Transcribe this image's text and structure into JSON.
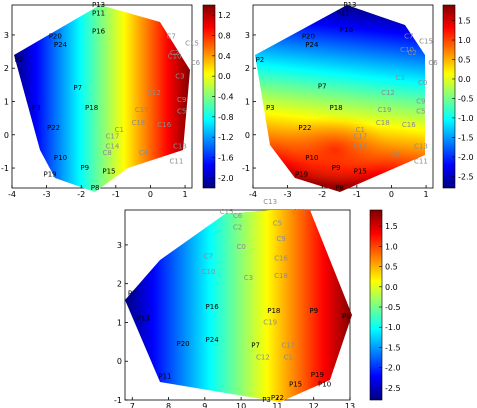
{
  "chart_data": [
    {
      "type": "heatmap",
      "name": "panel-top-left",
      "xlim": [
        -4,
        1.2
      ],
      "ylim": [
        -1.6,
        3.9
      ],
      "xticks": [
        "-4",
        "-3",
        "-2",
        "-1",
        "0",
        "1"
      ],
      "yticks": [
        "3",
        "2",
        "1",
        "0",
        "-1"
      ],
      "colorbar_ticks": [
        "1.2",
        "0.8",
        "0.4",
        "0.0",
        "-0.4",
        "-0.8",
        "-1.2",
        "-1.6",
        "-2.0"
      ],
      "colorbar_range": [
        -2.2,
        1.4
      ],
      "colormap": [
        "#00007f",
        "#0000ff",
        "#0080ff",
        "#00ffff",
        "#80ff80",
        "#ffff00",
        "#ff8000",
        "#ff0000",
        "#7f0000"
      ],
      "points": [
        {
          "label": "P13",
          "x": -1.5,
          "y": 3.9,
          "group": "P"
        },
        {
          "label": "P11",
          "x": -1.5,
          "y": 3.65,
          "group": "P"
        },
        {
          "label": "P16",
          "x": -1.5,
          "y": 3.1,
          "group": "P"
        },
        {
          "label": "P20",
          "x": -2.75,
          "y": 2.95,
          "group": "P"
        },
        {
          "label": "P24",
          "x": -2.6,
          "y": 2.7,
          "group": "P"
        },
        {
          "label": "P2",
          "x": -3.8,
          "y": 2.25,
          "group": "P"
        },
        {
          "label": "P7",
          "x": -2.1,
          "y": 1.4,
          "group": "P"
        },
        {
          "label": "P3",
          "x": -3.3,
          "y": 0.8,
          "group": "P"
        },
        {
          "label": "P18",
          "x": -1.7,
          "y": 0.8,
          "group": "P"
        },
        {
          "label": "P22",
          "x": -2.8,
          "y": 0.2,
          "group": "P"
        },
        {
          "label": "P10",
          "x": -2.6,
          "y": -0.7,
          "group": "P"
        },
        {
          "label": "P9",
          "x": -1.9,
          "y": -1.0,
          "group": "P"
        },
        {
          "label": "P15",
          "x": -1.2,
          "y": -1.1,
          "group": "P"
        },
        {
          "label": "P19",
          "x": -2.9,
          "y": -1.2,
          "group": "P"
        },
        {
          "label": "P8",
          "x": -1.6,
          "y": -1.6,
          "group": "P"
        },
        {
          "label": "C7",
          "x": 0.6,
          "y": 2.95,
          "group": "C"
        },
        {
          "label": "C15",
          "x": 1.2,
          "y": 2.75,
          "group": "C"
        },
        {
          "label": "C2",
          "x": 0.7,
          "y": 2.45,
          "group": "C"
        },
        {
          "label": "C10",
          "x": 0.7,
          "y": 2.35,
          "group": "C"
        },
        {
          "label": "C6",
          "x": 1.3,
          "y": 2.15,
          "group": "C"
        },
        {
          "label": "C3",
          "x": 0.85,
          "y": 1.75,
          "group": "C"
        },
        {
          "label": "C12",
          "x": 0.1,
          "y": 1.25,
          "group": "C"
        },
        {
          "label": "C9",
          "x": 0.9,
          "y": 1.05,
          "group": "C"
        },
        {
          "label": "C19",
          "x": -0.25,
          "y": 0.75,
          "group": "C"
        },
        {
          "label": "C5",
          "x": 0.9,
          "y": 0.7,
          "group": "C"
        },
        {
          "label": "C18",
          "x": -0.35,
          "y": 0.35,
          "group": "C"
        },
        {
          "label": "C16",
          "x": 0.4,
          "y": 0.3,
          "group": "C"
        },
        {
          "label": "C1",
          "x": -0.9,
          "y": 0.15,
          "group": "C"
        },
        {
          "label": "C17",
          "x": -1.1,
          "y": -0.05,
          "group": "C"
        },
        {
          "label": "C14",
          "x": -1.1,
          "y": -0.35,
          "group": "C"
        },
        {
          "label": "C8",
          "x": -1.25,
          "y": -0.55,
          "group": "C"
        },
        {
          "label": "C13",
          "x": 0.85,
          "y": -0.35,
          "group": "C"
        },
        {
          "label": "C4",
          "x": -0.2,
          "y": -0.55,
          "group": "C"
        },
        {
          "label": "C11",
          "x": 0.75,
          "y": -0.8,
          "group": "C"
        }
      ]
    },
    {
      "type": "heatmap",
      "name": "panel-top-right",
      "xlim": [
        -4,
        1.2
      ],
      "ylim": [
        -1.6,
        3.9
      ],
      "xticks": [
        "-4",
        "-3",
        "-2",
        "-1",
        "0",
        "1"
      ],
      "yticks": [
        "3",
        "2",
        "1",
        "0",
        "-1"
      ],
      "colorbar_ticks": [
        "1.5",
        "1.0",
        "0.5",
        "0.0",
        "-0.5",
        "-1.0",
        "-1.5",
        "-2.0",
        "-2.5"
      ],
      "colorbar_range": [
        -2.8,
        1.9
      ],
      "colormap": [
        "#00007f",
        "#0000ff",
        "#0080ff",
        "#00ffff",
        "#80ff80",
        "#ffff00",
        "#ff8000",
        "#ff0000",
        "#7f0000"
      ],
      "points": [
        {
          "label": "P13",
          "x": -1.2,
          "y": 3.9,
          "group": "P"
        },
        {
          "label": "P11",
          "x": -1.4,
          "y": 3.65,
          "group": "P"
        },
        {
          "label": "P16",
          "x": -1.3,
          "y": 3.15,
          "group": "P"
        },
        {
          "label": "P20",
          "x": -2.4,
          "y": 2.95,
          "group": "P"
        },
        {
          "label": "P24",
          "x": -2.3,
          "y": 2.7,
          "group": "P"
        },
        {
          "label": "P2",
          "x": -3.8,
          "y": 2.25,
          "group": "P"
        },
        {
          "label": "P7",
          "x": -2.0,
          "y": 1.45,
          "group": "P"
        },
        {
          "label": "P3",
          "x": -3.5,
          "y": 0.8,
          "group": "P"
        },
        {
          "label": "P18",
          "x": -1.6,
          "y": 0.8,
          "group": "P"
        },
        {
          "label": "P22",
          "x": -2.5,
          "y": 0.2,
          "group": "P"
        },
        {
          "label": "P10",
          "x": -2.3,
          "y": -0.7,
          "group": "P"
        },
        {
          "label": "P9",
          "x": -1.6,
          "y": -1.0,
          "group": "P"
        },
        {
          "label": "P15",
          "x": -0.9,
          "y": -1.1,
          "group": "P"
        },
        {
          "label": "P19",
          "x": -2.6,
          "y": -1.2,
          "group": "P"
        },
        {
          "label": "P8",
          "x": -1.5,
          "y": -1.6,
          "group": "P"
        },
        {
          "label": "C7",
          "x": 0.5,
          "y": 2.95,
          "group": "C"
        },
        {
          "label": "C15",
          "x": 1.0,
          "y": 2.8,
          "group": "C"
        },
        {
          "label": "C10",
          "x": 0.45,
          "y": 2.55,
          "group": "C"
        },
        {
          "label": "C2",
          "x": 0.6,
          "y": 2.45,
          "group": "C"
        },
        {
          "label": "C6",
          "x": 1.2,
          "y": 2.15,
          "group": "C"
        },
        {
          "label": "C3",
          "x": 0.25,
          "y": 1.7,
          "group": "C"
        },
        {
          "label": "C0",
          "x": 0.9,
          "y": 1.55,
          "group": "C"
        },
        {
          "label": "C12",
          "x": -0.1,
          "y": 1.25,
          "group": "C"
        },
        {
          "label": "C9",
          "x": 0.85,
          "y": 1.0,
          "group": "C"
        },
        {
          "label": "C19",
          "x": -0.2,
          "y": 0.75,
          "group": "C"
        },
        {
          "label": "C5",
          "x": 0.85,
          "y": 0.7,
          "group": "C"
        },
        {
          "label": "C18",
          "x": -0.25,
          "y": 0.35,
          "group": "C"
        },
        {
          "label": "C16",
          "x": 0.5,
          "y": 0.3,
          "group": "C"
        },
        {
          "label": "C1",
          "x": -0.9,
          "y": 0.15,
          "group": "C"
        },
        {
          "label": "C17",
          "x": -0.9,
          "y": -0.05,
          "group": "C"
        },
        {
          "label": "C14",
          "x": -0.9,
          "y": -0.35,
          "group": "C"
        },
        {
          "label": "C13",
          "x": 0.85,
          "y": -0.35,
          "group": "C"
        },
        {
          "label": "C4",
          "x": 0.1,
          "y": -0.6,
          "group": "C"
        },
        {
          "label": "C11",
          "x": 0.85,
          "y": -0.8,
          "group": "C"
        }
      ]
    },
    {
      "type": "heatmap",
      "name": "panel-bottom",
      "xlim": [
        6.8,
        13
      ],
      "ylim": [
        -1,
        3.9
      ],
      "xticks": [
        "7",
        "8",
        "9",
        "10",
        "11",
        "12",
        "13"
      ],
      "yticks": [
        "3",
        "2",
        "1",
        "0",
        "-1"
      ],
      "colorbar_ticks": [
        "1.5",
        "1.0",
        "0.5",
        "0.0",
        "-0.5",
        "-1.0",
        "-1.5",
        "-2.0",
        "-2.5"
      ],
      "colorbar_range": [
        -2.8,
        1.9
      ],
      "colormap": [
        "#00007f",
        "#0000ff",
        "#0080ff",
        "#00ffff",
        "#80ff80",
        "#ffff00",
        "#ff8000",
        "#ff0000",
        "#7f0000"
      ],
      "points": [
        {
          "label": "C13",
          "x": 10.8,
          "y": 4.1,
          "group": "C"
        },
        {
          "label": "C15",
          "x": 9.6,
          "y": 3.85,
          "group": "C"
        },
        {
          "label": "C6",
          "x": 9.9,
          "y": 3.75,
          "group": "C"
        },
        {
          "label": "C11",
          "x": 11.6,
          "y": 3.85,
          "group": "C"
        },
        {
          "label": "C2",
          "x": 9.9,
          "y": 3.45,
          "group": "C"
        },
        {
          "label": "C5",
          "x": 11.0,
          "y": 3.55,
          "group": "C"
        },
        {
          "label": "C9",
          "x": 11.1,
          "y": 3.15,
          "group": "C"
        },
        {
          "label": "C0",
          "x": 10.0,
          "y": 2.95,
          "group": "C"
        },
        {
          "label": "C7",
          "x": 9.1,
          "y": 2.7,
          "group": "C"
        },
        {
          "label": "C16",
          "x": 11.1,
          "y": 2.65,
          "group": "C"
        },
        {
          "label": "C10",
          "x": 9.1,
          "y": 2.3,
          "group": "C"
        },
        {
          "label": "C3",
          "x": 10.2,
          "y": 2.15,
          "group": "C"
        },
        {
          "label": "C18",
          "x": 11.1,
          "y": 2.2,
          "group": "C"
        },
        {
          "label": "P2",
          "x": 7.0,
          "y": 1.75,
          "group": "P"
        },
        {
          "label": "P16",
          "x": 9.2,
          "y": 1.4,
          "group": "P"
        },
        {
          "label": "P18",
          "x": 10.9,
          "y": 1.3,
          "group": "P"
        },
        {
          "label": "P9",
          "x": 12.0,
          "y": 1.3,
          "group": "P"
        },
        {
          "label": "P8",
          "x": 12.9,
          "y": 1.15,
          "group": "P"
        },
        {
          "label": "P13",
          "x": 7.3,
          "y": 1.1,
          "group": "P"
        },
        {
          "label": "C19",
          "x": 10.8,
          "y": 1.0,
          "group": "C"
        },
        {
          "label": "P24",
          "x": 9.2,
          "y": 0.55,
          "group": "P"
        },
        {
          "label": "P20",
          "x": 8.4,
          "y": 0.45,
          "group": "P"
        },
        {
          "label": "P7",
          "x": 10.4,
          "y": 0.4,
          "group": "P"
        },
        {
          "label": "C17",
          "x": 11.3,
          "y": 0.4,
          "group": "C"
        },
        {
          "label": "C12",
          "x": 10.6,
          "y": 0.1,
          "group": "C"
        },
        {
          "label": "C1",
          "x": 11.3,
          "y": 0.1,
          "group": "C"
        },
        {
          "label": "P11",
          "x": 7.9,
          "y": -0.4,
          "group": "P"
        },
        {
          "label": "P19",
          "x": 12.1,
          "y": -0.35,
          "group": "P"
        },
        {
          "label": "P10",
          "x": 12.3,
          "y": -0.6,
          "group": "P"
        },
        {
          "label": "P15",
          "x": 11.5,
          "y": -0.6,
          "group": "P"
        },
        {
          "label": "P22",
          "x": 11.0,
          "y": -0.95,
          "group": "P"
        },
        {
          "label": "P3",
          "x": 10.7,
          "y": -1.0,
          "group": "P"
        }
      ]
    }
  ]
}
